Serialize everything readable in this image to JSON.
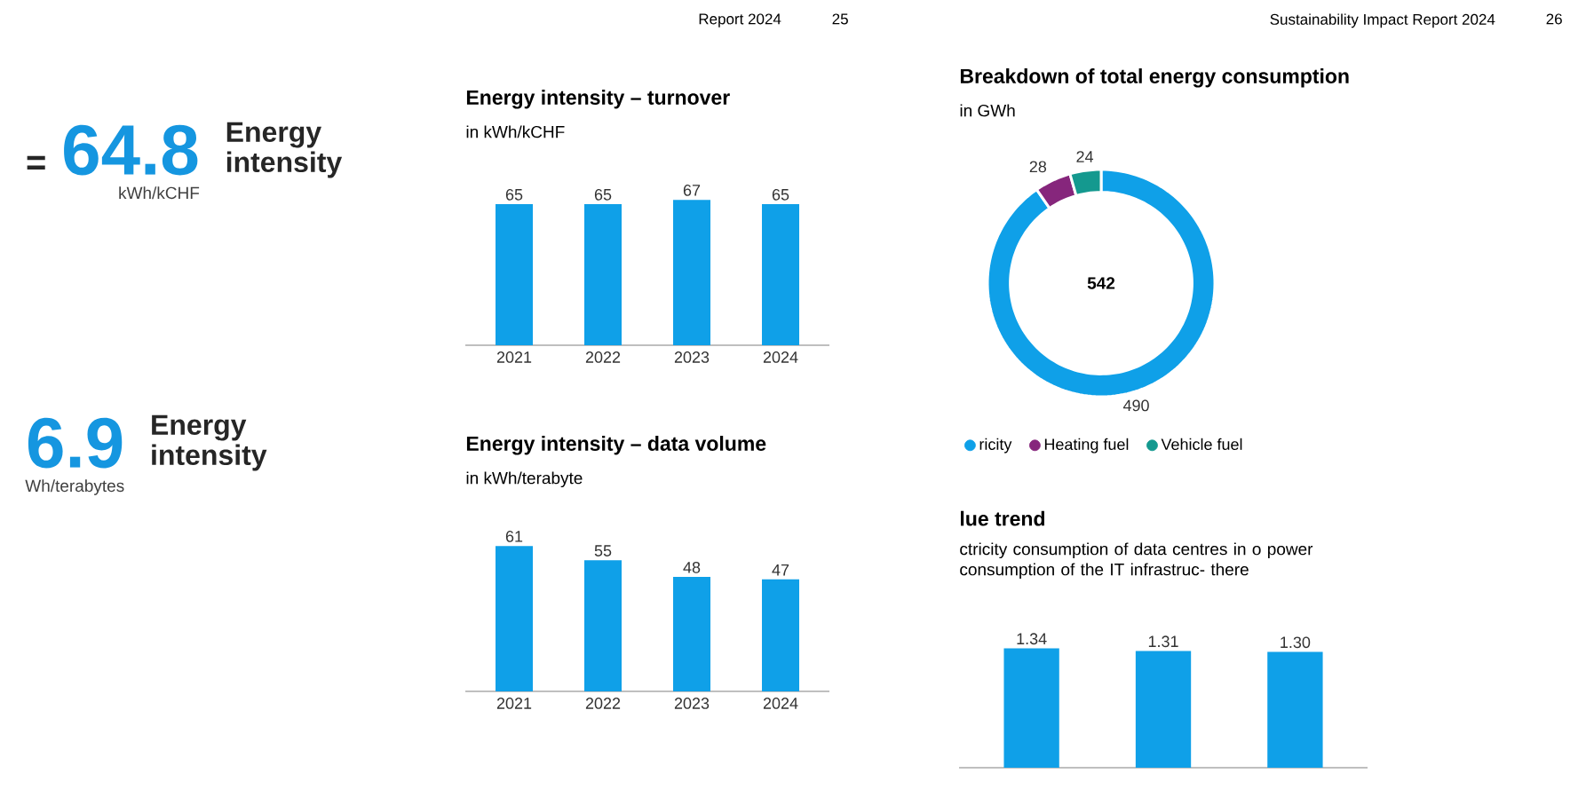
{
  "chart_data": [
    {
      "type": "other",
      "title": "Energy intensity",
      "annotations": [
        "=",
        "64.8",
        "kWh/kCHF"
      ],
      "color": "#1596e0"
    },
    {
      "type": "other",
      "title": "Energy intensity",
      "annotations": [
        "6.9",
        "Wh/terabytes"
      ],
      "color": "#1596e0"
    },
    {
      "type": "bar",
      "title": "Energy intensity – turnover",
      "subtitle": "in kWh/kCHF",
      "categories": [
        "2021",
        "2022",
        "2023",
        "2024"
      ],
      "values": [
        65,
        65,
        67,
        65
      ],
      "color": "#0fa0e8",
      "data_labels": true,
      "tick_labels": "x",
      "annotations": [
        "Report 2024",
        "25"
      ]
    },
    {
      "type": "bar",
      "title": "Energy intensity – data volume",
      "subtitle": "in kWh/terabyte",
      "categories": [
        "2021",
        "2022",
        "2023",
        "2024"
      ],
      "values": [
        61,
        55,
        48,
        47
      ],
      "color": "#0fa0e8",
      "data_labels": true,
      "tick_labels": "x"
    },
    {
      "type": "donut",
      "title": "Breakdown of total energy consumption",
      "subtitle": "in GWh",
      "categories": [
        "ricity",
        "Heating fuel",
        "Vehicle fuel"
      ],
      "values": [
        490,
        28,
        24
      ],
      "colors": [
        "#0fa0e8",
        "#86267c",
        "#14998f"
      ],
      "data_labels": true,
      "legend": "bottom",
      "annotations": [
        "542",
        "Sustainability Impact Report 2024",
        "26"
      ]
    },
    {
      "type": "bar",
      "title": "lue trend",
      "subtitle": "ctricity consumption of data centres in o power consumption of the IT infrastruc- there",
      "categories": [
        null,
        null,
        null
      ],
      "values": [
        1.34,
        1.31,
        1.3
      ],
      "value_labels": [
        "1.34",
        "1.31",
        "1.30"
      ],
      "color": "#0fa0e8",
      "tick_labels": false
    }
  ]
}
